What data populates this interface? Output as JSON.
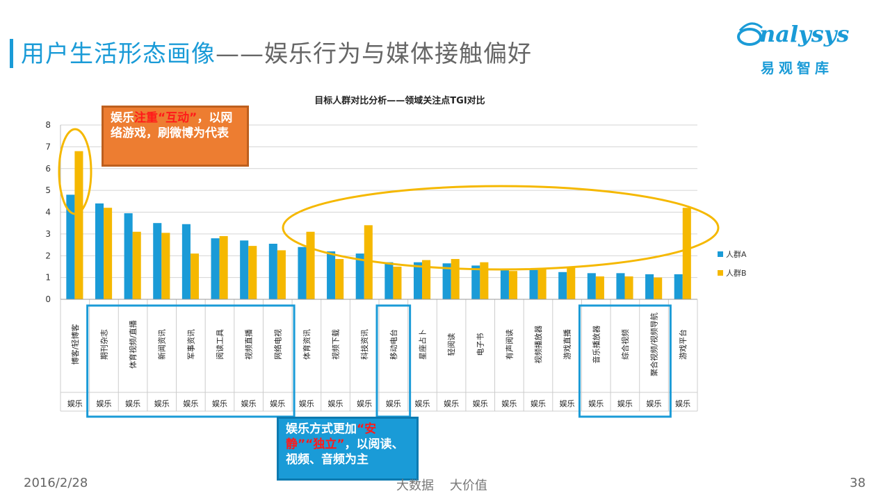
{
  "page": {
    "title_main": "用户生活形态画像",
    "title_dash": "——",
    "title_sub": "娱乐行为与媒体接触偏好",
    "logo_text": "nalysys",
    "logo_cn": "易观智库",
    "footer_date": "2016/2/28",
    "footer_tagline": "大数据    大价值",
    "page_number": "38"
  },
  "callouts": {
    "orange": {
      "p1": "娱乐",
      "p2": "注重“互动”",
      "p3": "，以网络游戏，刷微博为代表"
    },
    "blue": {
      "p1": "娱乐方式更加",
      "p2": "“安静”“独立”",
      "p3": "，以阅读、视频、音频为主"
    }
  },
  "colors": {
    "series_a": "#1a9bd7",
    "series_b": "#f5b800",
    "title_blue": "#1a9bd7",
    "callout_orange": "#ed7d31",
    "highlight_red": "#ff1a1a",
    "ellipse": "#f5b800",
    "box_blue": "#1a9bd7"
  },
  "chart_data": {
    "type": "bar",
    "title": "目标人群对比分析——领域关注点TGI对比",
    "ylim": [
      0,
      8
    ],
    "yticks": [
      0,
      1,
      2,
      3,
      4,
      5,
      6,
      7,
      8
    ],
    "grid": true,
    "legend_position": "right",
    "categories": [
      "博客/轻博客",
      "期刊杂志",
      "体育视频/直播",
      "新闻资讯",
      "军事资讯",
      "阅读工具",
      "视频直播",
      "网络电视",
      "体育资讯",
      "视频下载",
      "科技资讯",
      "移动电台",
      "星座占卜",
      "轻阅读",
      "电子书",
      "有声阅读",
      "视频播放器",
      "游戏直播",
      "音乐播放器",
      "综合视频",
      "聚合视频/视频导航",
      "游戏平台"
    ],
    "group_labels": [
      "娱乐",
      "娱乐",
      "娱乐",
      "娱乐",
      "娱乐",
      "娱乐",
      "娱乐",
      "娱乐",
      "娱乐",
      "娱乐",
      "娱乐",
      "娱乐",
      "娱乐",
      "娱乐",
      "娱乐",
      "娱乐",
      "娱乐",
      "娱乐",
      "娱乐",
      "娱乐",
      "娱乐",
      "娱乐"
    ],
    "series": [
      {
        "name": "人群A",
        "values": [
          4.8,
          4.4,
          3.95,
          3.5,
          3.45,
          2.8,
          2.7,
          2.55,
          2.4,
          2.2,
          2.1,
          1.7,
          1.7,
          1.65,
          1.55,
          1.4,
          1.35,
          1.25,
          1.2,
          1.2,
          1.15,
          1.15
        ]
      },
      {
        "name": "人群B",
        "values": [
          6.8,
          4.2,
          3.1,
          3.05,
          2.1,
          2.9,
          2.45,
          2.25,
          3.1,
          1.85,
          3.4,
          1.5,
          1.8,
          1.85,
          1.7,
          1.3,
          1.4,
          1.45,
          1.05,
          1.05,
          1.0,
          4.2
        ]
      }
    ]
  }
}
